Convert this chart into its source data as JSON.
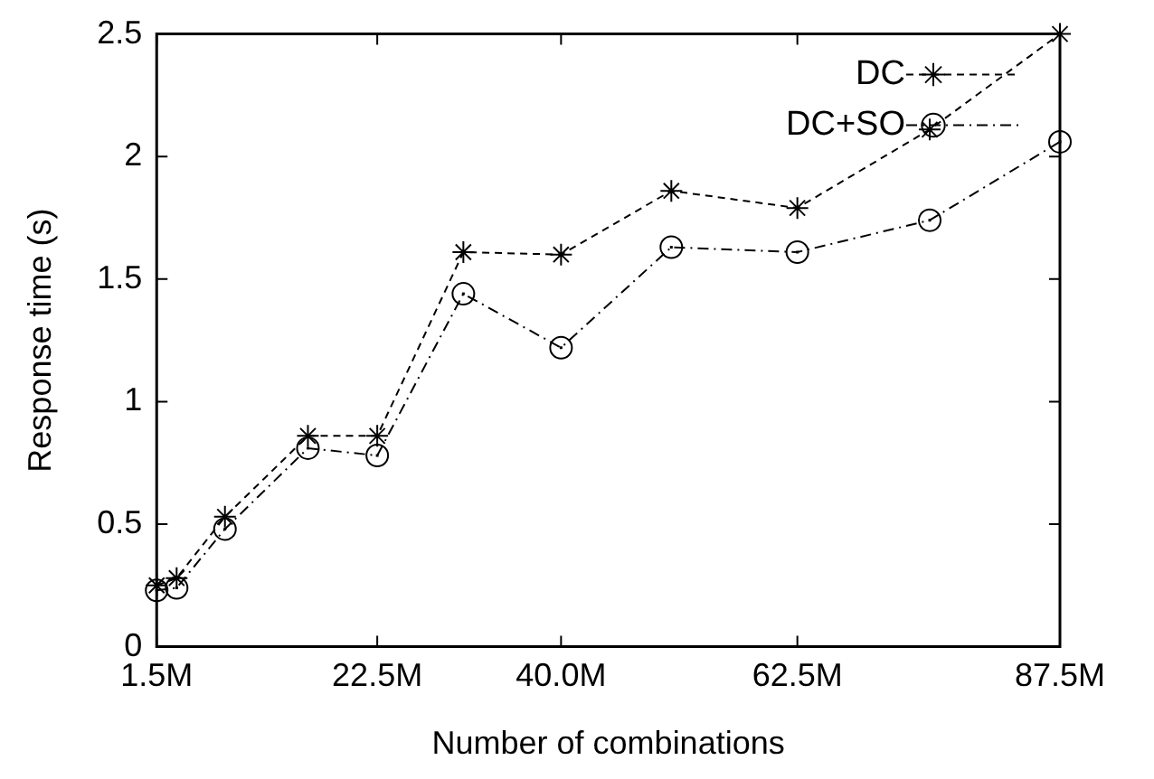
{
  "chart_data": {
    "type": "line",
    "xlabel": "Number of combinations",
    "ylabel": "Response time (s)",
    "xlim": [
      1.5,
      87.5
    ],
    "xticks": [
      {
        "value": 1.5,
        "label": "1.5M"
      },
      {
        "value": 22.5,
        "label": "22.5M"
      },
      {
        "value": 40,
        "label": "40.0M"
      },
      {
        "value": 62.5,
        "label": "62.5M"
      },
      {
        "value": 87.5,
        "label": "87.5M"
      }
    ],
    "ylim": [
      0,
      2.5
    ],
    "yticks": [
      0,
      0.5,
      1,
      1.5,
      2,
      2.5
    ],
    "grid": false,
    "legend": "top right",
    "series": [
      {
        "name": "DC",
        "color": "#000000",
        "marker": "cross",
        "line_style": "dashed",
        "x": [
          1.5,
          3.4,
          8,
          15.9,
          22.5,
          30.7,
          40,
          50.5,
          62.5,
          75.1,
          87.5
        ],
        "values": [
          0.25,
          0.28,
          0.53,
          0.86,
          0.86,
          1.61,
          1.6,
          1.86,
          1.79,
          2.11,
          2.5
        ]
      },
      {
        "name": "DC+SO",
        "color": "#000000",
        "marker": "circle",
        "line_style": "dashdot",
        "x": [
          1.5,
          3.4,
          8,
          15.9,
          22.5,
          30.7,
          40,
          50.5,
          62.5,
          75.1,
          87.5
        ],
        "values": [
          0.23,
          0.24,
          0.48,
          0.81,
          0.78,
          1.44,
          1.22,
          1.63,
          1.61,
          1.74,
          2.06
        ]
      }
    ]
  }
}
